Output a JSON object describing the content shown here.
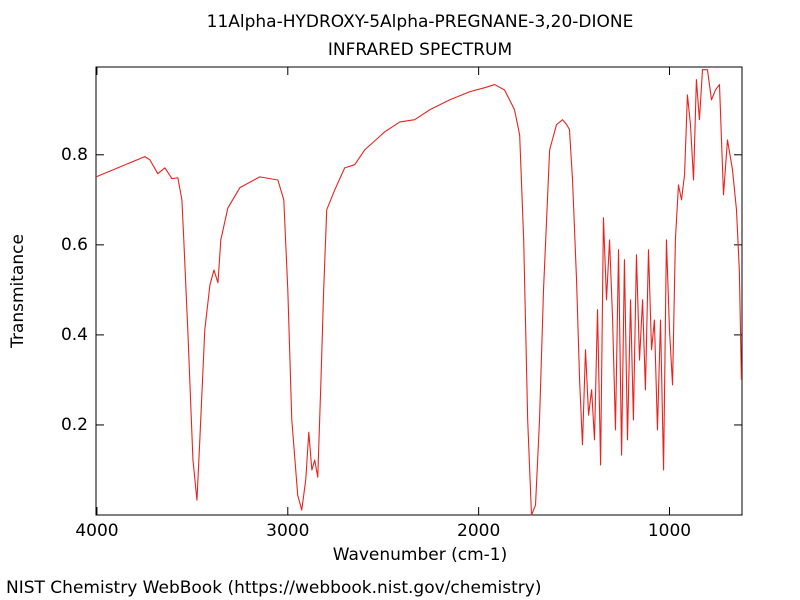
{
  "chart_data": {
    "type": "line",
    "title": "11Alpha-HYDROXY-5Alpha-PREGNANE-3,20-DIONE",
    "subtitle": "INFRARED SPECTRUM",
    "x_label": "Wavenumber (cm-1)",
    "y_label": "Transmitance",
    "footer": "NIST Chemistry WebBook (https://webbook.nist.gov/chemistry)",
    "color": "#e8231f",
    "xlim": [
      4005,
      620
    ],
    "ylim": [
      0,
      0.995
    ],
    "xticks": [
      4000,
      3000,
      2000,
      1000
    ],
    "yticks": [
      0.2,
      0.4,
      0.6,
      0.8
    ],
    "x": [
      4005,
      3880,
      3749,
      3723,
      3681,
      3644,
      3607,
      3576,
      3555,
      3545,
      3524,
      3497,
      3476,
      3461,
      3435,
      3408,
      3387,
      3366,
      3351,
      3314,
      3251,
      3147,
      3052,
      3021,
      3000,
      2979,
      2948,
      2927,
      2906,
      2890,
      2874,
      2859,
      2843,
      2827,
      2812,
      2796,
      2754,
      2702,
      2649,
      2597,
      2492,
      2413,
      2335,
      2256,
      2152,
      2047,
      1968,
      1916,
      1864,
      1812,
      1785,
      1764,
      1743,
      1723,
      1702,
      1681,
      1660,
      1628,
      1592,
      1560,
      1539,
      1524,
      1508,
      1487,
      1471,
      1456,
      1440,
      1424,
      1408,
      1393,
      1377,
      1361,
      1346,
      1330,
      1314,
      1298,
      1283,
      1267,
      1251,
      1236,
      1220,
      1204,
      1189,
      1173,
      1157,
      1141,
      1126,
      1110,
      1094,
      1079,
      1063,
      1047,
      1031,
      1016,
      1000,
      984,
      969,
      953,
      937,
      921,
      906,
      890,
      874,
      859,
      843,
      827,
      801,
      780,
      759,
      738,
      717,
      696,
      670,
      649,
      634,
      623
    ],
    "values": [
      0.751,
      0.773,
      0.796,
      0.789,
      0.758,
      0.771,
      0.747,
      0.749,
      0.7,
      0.611,
      0.411,
      0.122,
      0.033,
      0.167,
      0.411,
      0.511,
      0.544,
      0.516,
      0.611,
      0.682,
      0.727,
      0.751,
      0.744,
      0.7,
      0.5,
      0.211,
      0.044,
      0.011,
      0.078,
      0.184,
      0.1,
      0.122,
      0.084,
      0.289,
      0.5,
      0.678,
      0.722,
      0.771,
      0.778,
      0.811,
      0.851,
      0.873,
      0.878,
      0.9,
      0.922,
      0.94,
      0.949,
      0.956,
      0.944,
      0.9,
      0.844,
      0.611,
      0.211,
      0.0,
      0.022,
      0.211,
      0.5,
      0.811,
      0.867,
      0.878,
      0.867,
      0.856,
      0.744,
      0.522,
      0.3,
      0.156,
      0.367,
      0.222,
      0.278,
      0.167,
      0.456,
      0.111,
      0.66,
      0.478,
      0.611,
      0.433,
      0.189,
      0.589,
      0.133,
      0.567,
      0.167,
      0.478,
      0.211,
      0.578,
      0.344,
      0.478,
      0.278,
      0.589,
      0.367,
      0.433,
      0.189,
      0.433,
      0.1,
      0.611,
      0.411,
      0.289,
      0.611,
      0.733,
      0.7,
      0.756,
      0.933,
      0.867,
      0.744,
      0.967,
      0.878,
      0.989,
      0.989,
      0.922,
      0.944,
      0.956,
      0.711,
      0.833,
      0.767,
      0.678,
      0.544,
      0.3
    ]
  }
}
